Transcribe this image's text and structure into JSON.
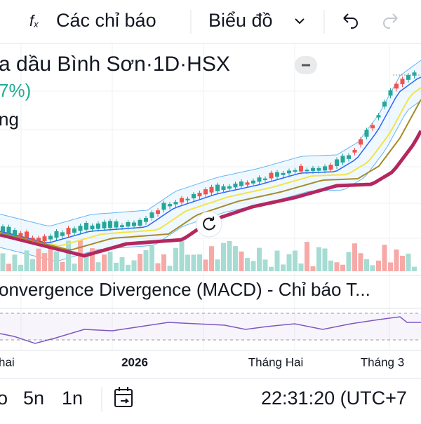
{
  "toolbar": {
    "indicators": "Các chỉ báo",
    "chart": "Biểu đồ"
  },
  "legend": {
    "title": "a dầu Bình Sơn·1D·HSX",
    "change": "7%)",
    "line3": "ng"
  },
  "macd": {
    "title": "onvergence Divergence (MACD) - Chỉ báo T..."
  },
  "time_axis": [
    "hai",
    "2026",
    "Tháng Hai",
    "Tháng 3"
  ],
  "bottom_bar": {
    "ranges": [
      "o",
      "5n",
      "1n"
    ],
    "clock": "22:31:20 (UTC+7"
  }
}
